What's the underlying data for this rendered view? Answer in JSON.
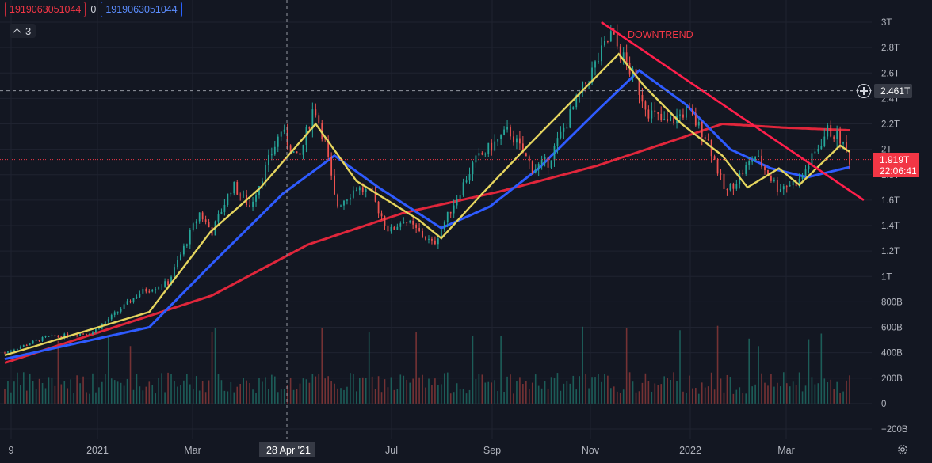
{
  "legend": {
    "red_value": "1919063051044",
    "zero_value": "0",
    "blue_value": "1919063051044",
    "collapse_count": "3"
  },
  "annotation": {
    "downtrend": "DOWNTREND"
  },
  "crosshair": {
    "price_label": "2.461T",
    "date_label": "28 Apr '21"
  },
  "last_price": {
    "value": "1.919T",
    "countdown": "22:06:41"
  },
  "colors": {
    "background": "#131722",
    "up": "#26a69a",
    "down": "#ef5350",
    "ma_fast": "#e5d55e",
    "ma_mid": "#2e5bff",
    "ma_slow": "#e0263b",
    "trendline": "#ff1f4b",
    "axis_text": "#b2b5be"
  },
  "chart_data": {
    "type": "candlestick",
    "title": "",
    "y_unit": "T",
    "ylim": [
      -0.2,
      3.0
    ],
    "y_ticks": [
      "3T",
      "2.8T",
      "2.6T",
      "2.4T",
      "2.2T",
      "2T",
      "1.8T",
      "1.6T",
      "1.4T",
      "1.2T",
      "1T",
      "800B",
      "600B",
      "400B",
      "200B",
      "0",
      "−200B"
    ],
    "x_ticks": [
      "9",
      "2021",
      "Mar",
      "Jul",
      "Sep",
      "Nov",
      "2022",
      "Mar"
    ],
    "price_key_points": [
      [
        "2020-10-20",
        0.4
      ],
      [
        "2020-11-15",
        0.52
      ],
      [
        "2020-12-15",
        0.56
      ],
      [
        "2021-01-15",
        0.88
      ],
      [
        "2021-02-01",
        0.95
      ],
      [
        "2021-02-21",
        1.5
      ],
      [
        "2021-03-01",
        1.35
      ],
      [
        "2021-03-14",
        1.72
      ],
      [
        "2021-03-25",
        1.55
      ],
      [
        "2021-04-14",
        2.15
      ],
      [
        "2021-04-25",
        1.9
      ],
      [
        "2021-05-05",
        2.35
      ],
      [
        "2021-05-12",
        2.05
      ],
      [
        "2021-05-19",
        1.55
      ],
      [
        "2021-06-01",
        1.7
      ],
      [
        "2021-06-10",
        1.65
      ],
      [
        "2021-06-22",
        1.35
      ],
      [
        "2021-07-01",
        1.45
      ],
      [
        "2021-07-20",
        1.25
      ],
      [
        "2021-08-01",
        1.55
      ],
      [
        "2021-08-15",
        1.9
      ],
      [
        "2021-09-06",
        2.15
      ],
      [
        "2021-09-21",
        1.85
      ],
      [
        "2021-10-01",
        1.9
      ],
      [
        "2021-10-20",
        2.4
      ],
      [
        "2021-11-10",
        2.9
      ],
      [
        "2021-11-25",
        2.55
      ],
      [
        "2021-12-04",
        2.3
      ],
      [
        "2021-12-15",
        2.2
      ],
      [
        "2021-12-28",
        2.3
      ],
      [
        "2022-01-10",
        2.1
      ],
      [
        "2022-01-22",
        1.65
      ],
      [
        "2022-02-10",
        1.95
      ],
      [
        "2022-02-24",
        1.7
      ],
      [
        "2022-03-10",
        1.75
      ],
      [
        "2022-03-28",
        2.15
      ],
      [
        "2022-04-05",
        2.08
      ],
      [
        "2022-04-11",
        1.919
      ]
    ],
    "ma_fast_key_points": [
      [
        "2020-10-20",
        0.38
      ],
      [
        "2021-01-20",
        0.72
      ],
      [
        "2021-02-28",
        1.35
      ],
      [
        "2021-04-01",
        1.7
      ],
      [
        "2021-05-06",
        2.2
      ],
      [
        "2021-06-01",
        1.75
      ],
      [
        "2021-07-10",
        1.45
      ],
      [
        "2021-07-25",
        1.3
      ],
      [
        "2021-08-20",
        1.65
      ],
      [
        "2021-09-20",
        2.05
      ],
      [
        "2021-11-15",
        2.75
      ],
      [
        "2021-12-01",
        2.5
      ],
      [
        "2021-12-25",
        2.2
      ],
      [
        "2022-01-20",
        1.95
      ],
      [
        "2022-02-05",
        1.7
      ],
      [
        "2022-02-25",
        1.85
      ],
      [
        "2022-03-10",
        1.72
      ],
      [
        "2022-04-05",
        2.03
      ],
      [
        "2022-04-11",
        1.98
      ]
    ],
    "ma_mid_key_points": [
      [
        "2020-10-20",
        0.35
      ],
      [
        "2021-01-20",
        0.6
      ],
      [
        "2021-03-01",
        1.1
      ],
      [
        "2021-04-15",
        1.65
      ],
      [
        "2021-05-18",
        1.95
      ],
      [
        "2021-06-15",
        1.7
      ],
      [
        "2021-07-25",
        1.38
      ],
      [
        "2021-08-25",
        1.55
      ],
      [
        "2021-09-25",
        1.85
      ],
      [
        "2021-11-01",
        2.3
      ],
      [
        "2021-11-28",
        2.62
      ],
      [
        "2021-12-28",
        2.35
      ],
      [
        "2022-01-25",
        2.0
      ],
      [
        "2022-02-20",
        1.85
      ],
      [
        "2022-03-15",
        1.78
      ],
      [
        "2022-04-11",
        1.86
      ]
    ],
    "ma_slow_key_points": [
      [
        "2020-10-20",
        0.32
      ],
      [
        "2021-03-01",
        0.85
      ],
      [
        "2021-05-01",
        1.25
      ],
      [
        "2021-07-01",
        1.5
      ],
      [
        "2021-09-01",
        1.67
      ],
      [
        "2021-11-01",
        1.87
      ],
      [
        "2021-12-20",
        2.07
      ],
      [
        "2022-01-20",
        2.2
      ],
      [
        "2022-03-01",
        2.17
      ],
      [
        "2022-04-11",
        2.15
      ]
    ],
    "trendline": {
      "from": [
        "2021-11-10",
        3.0
      ],
      "to": [
        "2022-04-15",
        1.6
      ]
    },
    "volume_range": [
      0,
      450000000000
    ]
  }
}
